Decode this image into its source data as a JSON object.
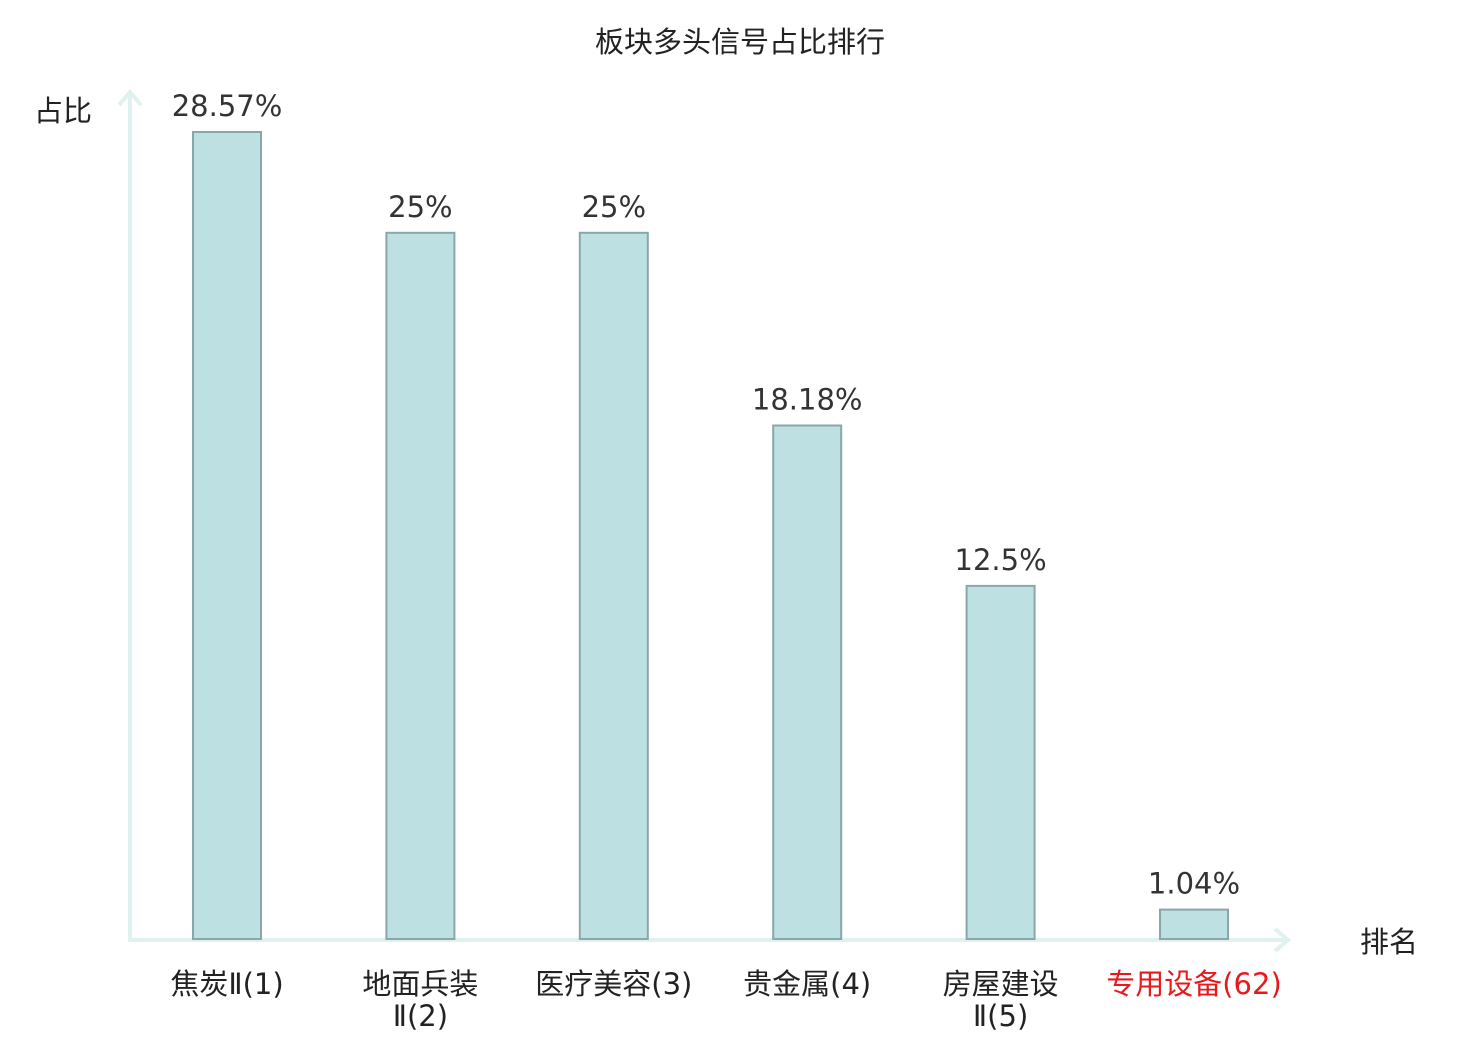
{
  "chart_data": {
    "type": "bar",
    "title": "板块多头信号占比排行",
    "ylabel": "占比",
    "xlabel": "排名",
    "ylim": [
      0,
      30
    ],
    "grid": false,
    "categories": [
      {
        "lines": [
          "焦炭Ⅱ(1)"
        ],
        "highlight": false
      },
      {
        "lines": [
          "地面兵装",
          "Ⅱ(2)"
        ],
        "highlight": false
      },
      {
        "lines": [
          "医疗美容(3)"
        ],
        "highlight": false
      },
      {
        "lines": [
          "贵金属(4)"
        ],
        "highlight": false
      },
      {
        "lines": [
          "房屋建设",
          "Ⅱ(5)"
        ],
        "highlight": false
      },
      {
        "lines": [
          "专用设备(62)"
        ],
        "highlight": true
      }
    ],
    "values": [
      28.57,
      25,
      25,
      18.18,
      12.5,
      1.04
    ],
    "data_labels": [
      "28.57%",
      "25%",
      "25%",
      "18.18%",
      "12.5%",
      "1.04%"
    ],
    "colors": {
      "bar_fill": "#bde0e3",
      "bar_stroke": "#8aa6a8",
      "axis": "#e0f2ef",
      "text": "#222222",
      "label": "#333333",
      "highlight": "#e8191c"
    }
  }
}
